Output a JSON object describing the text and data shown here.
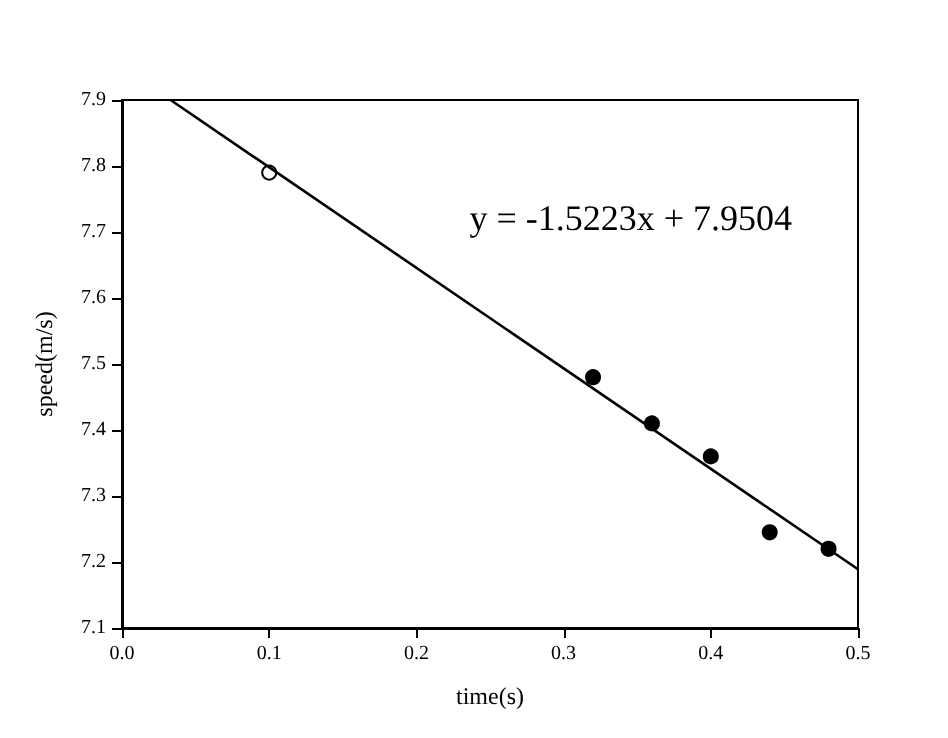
{
  "chart_data": {
    "type": "scatter",
    "xlabel": "time(s)",
    "ylabel": "speed(m/s)",
    "annotations": [
      "y = -1.5223x + 7.9504"
    ],
    "series": [
      {
        "color": "#ffffff",
        "x": [
          0.1
        ],
        "values": [
          7.79
        ]
      },
      {
        "color": "#000000",
        "x": [
          0.32,
          0.36,
          0.4,
          0.44,
          0.48
        ],
        "values": [
          7.48,
          7.41,
          7.36,
          7.245,
          7.22
        ]
      },
      {
        "type": "line",
        "marker": "none",
        "color": "#000000",
        "x": [
          0.033,
          0.5
        ],
        "values": [
          7.9,
          7.189
        ]
      }
    ],
    "xlim": [
      0,
      0.5
    ],
    "ylim": [
      7.1,
      7.9
    ],
    "xticks": [
      {
        "value": 0,
        "label": "0.0"
      },
      0.1,
      0.2,
      0.3,
      0.4,
      0.5
    ],
    "yticks": [
      7.1,
      7.2,
      7.3,
      7.4,
      7.5,
      7.6,
      7.7,
      7.8,
      7.9
    ],
    "grid": false,
    "marker": "circle",
    "line_style": "solid"
  }
}
